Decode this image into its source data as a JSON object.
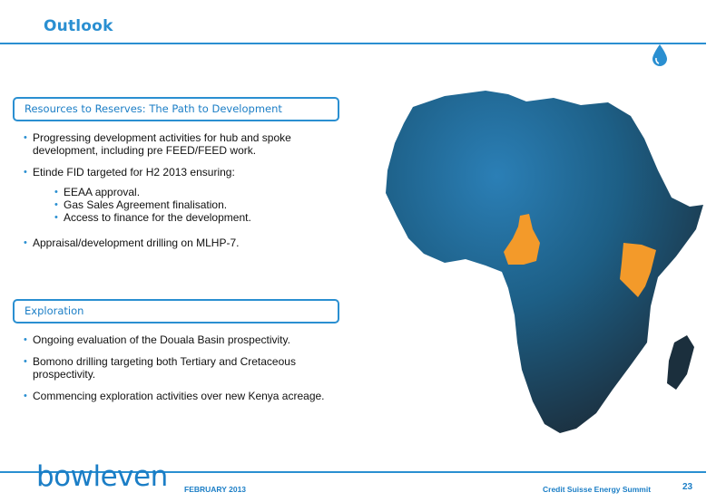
{
  "header": {
    "title": "Outlook"
  },
  "section1": {
    "heading": "Resources to Reserves:  The Path to Development",
    "bullets": [
      "Progressing development activities for hub and spoke development, including pre FEED/FEED work.",
      "Etinde FID targeted for H2 2013 ensuring:",
      "Appraisal/development drilling on MLHP-7."
    ],
    "sub_bullets": [
      "EEAA approval.",
      "Gas Sales Agreement finalisation.",
      "Access to finance for the development."
    ]
  },
  "section2": {
    "heading": "Exploration",
    "bullets": [
      "Ongoing evaluation of the Douala Basin prospectivity.",
      "Bomono drilling targeting both Tertiary and Cretaceous prospectivity.",
      "Commencing exploration activities over new Kenya acreage."
    ]
  },
  "map": {
    "icon": "africa-map",
    "highlight_color": "#f39a2a",
    "land_color": "#1e5f8a"
  },
  "footer": {
    "logo": "bowleven",
    "date": "FEBRUARY 2013",
    "event": "Credit Suisse Energy Summit",
    "page": "23"
  },
  "colors": {
    "accent": "#2a8fd1"
  }
}
